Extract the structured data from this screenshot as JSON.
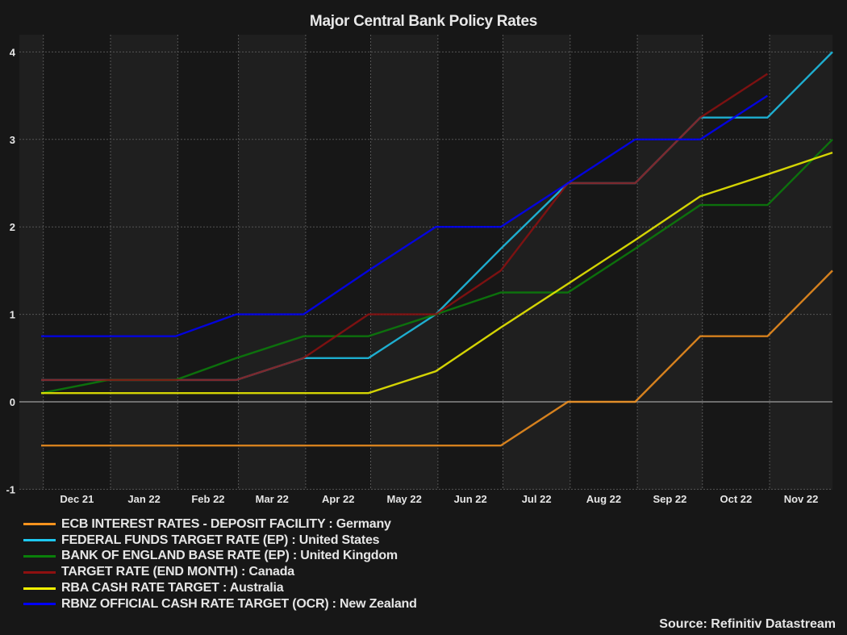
{
  "chart_data": {
    "type": "line",
    "title": "Major Central Bank Policy Rates",
    "xlabel": "",
    "ylabel": "",
    "ylim": [
      -1,
      4.2
    ],
    "yticks": [
      -1,
      0,
      1,
      2,
      3,
      4
    ],
    "ytick_labels": [
      "-1",
      "0",
      "1",
      "2",
      "3",
      "4"
    ],
    "x_tick_labels": [
      "Dec 21",
      "Jan 22",
      "Feb 22",
      "Mar 22",
      "Apr 22",
      "May 22",
      "Jun 22",
      "Jul 22",
      "Aug 22",
      "Sep 22",
      "Oct 22",
      "Nov 22"
    ],
    "x": [
      "2021-11-30",
      "2021-12-31",
      "2022-01-31",
      "2022-02-28",
      "2022-03-31",
      "2022-04-30",
      "2022-05-31",
      "2022-06-30",
      "2022-07-31",
      "2022-08-31",
      "2022-09-30",
      "2022-10-31",
      "2022-11-30"
    ],
    "grid": true,
    "legend_position": "bottom-left",
    "series": [
      {
        "name": "ECB INTEREST RATES - DEPOSIT FACILITY : Germany",
        "color": "#f7931e",
        "values": [
          -0.5,
          -0.5,
          -0.5,
          -0.5,
          -0.5,
          -0.5,
          -0.5,
          -0.5,
          0,
          0,
          0.75,
          0.75,
          1.5
        ]
      },
      {
        "name": "FEDERAL FUNDS TARGET RATE (EP) : United States",
        "color": "#1ec8f0",
        "values": [
          0.25,
          0.25,
          0.25,
          0.25,
          0.5,
          0.5,
          1.0,
          1.75,
          2.5,
          2.5,
          3.25,
          3.25,
          4.0
        ]
      },
      {
        "name": "BANK OF ENGLAND BASE RATE (EP) : United Kingdom",
        "color": "#0a800a",
        "values": [
          0.1,
          0.25,
          0.25,
          0.5,
          0.75,
          0.75,
          1.0,
          1.25,
          1.25,
          1.75,
          2.25,
          2.25,
          3.0
        ]
      },
      {
        "name": "TARGET RATE (END MONTH) : Canada",
        "color": "#8e1010",
        "values": [
          0.25,
          0.25,
          0.25,
          0.25,
          0.5,
          1.0,
          1.0,
          1.5,
          2.5,
          2.5,
          3.25,
          3.75,
          null
        ]
      },
      {
        "name": "RBA CASH RATE TARGET : Australia",
        "color": "#f5f500",
        "values": [
          0.1,
          0.1,
          0.1,
          0.1,
          0.1,
          0.1,
          0.35,
          0.85,
          1.35,
          1.85,
          2.35,
          2.6,
          2.85
        ]
      },
      {
        "name": "RBNZ OFFICIAL CASH RATE TARGET (OCR) : New Zealand",
        "color": "#0000ff",
        "values": [
          0.75,
          0.75,
          0.75,
          1.0,
          1.0,
          1.5,
          2.0,
          2.0,
          2.5,
          3.0,
          3.0,
          3.5,
          null
        ]
      }
    ],
    "source": "Source: Refinitiv Datastream"
  },
  "colors": {
    "background": "#171717",
    "band_light": "#1f1f1f",
    "band_dark": "#171717",
    "grid": "#555555",
    "zero_line": "#8a8a8a"
  }
}
